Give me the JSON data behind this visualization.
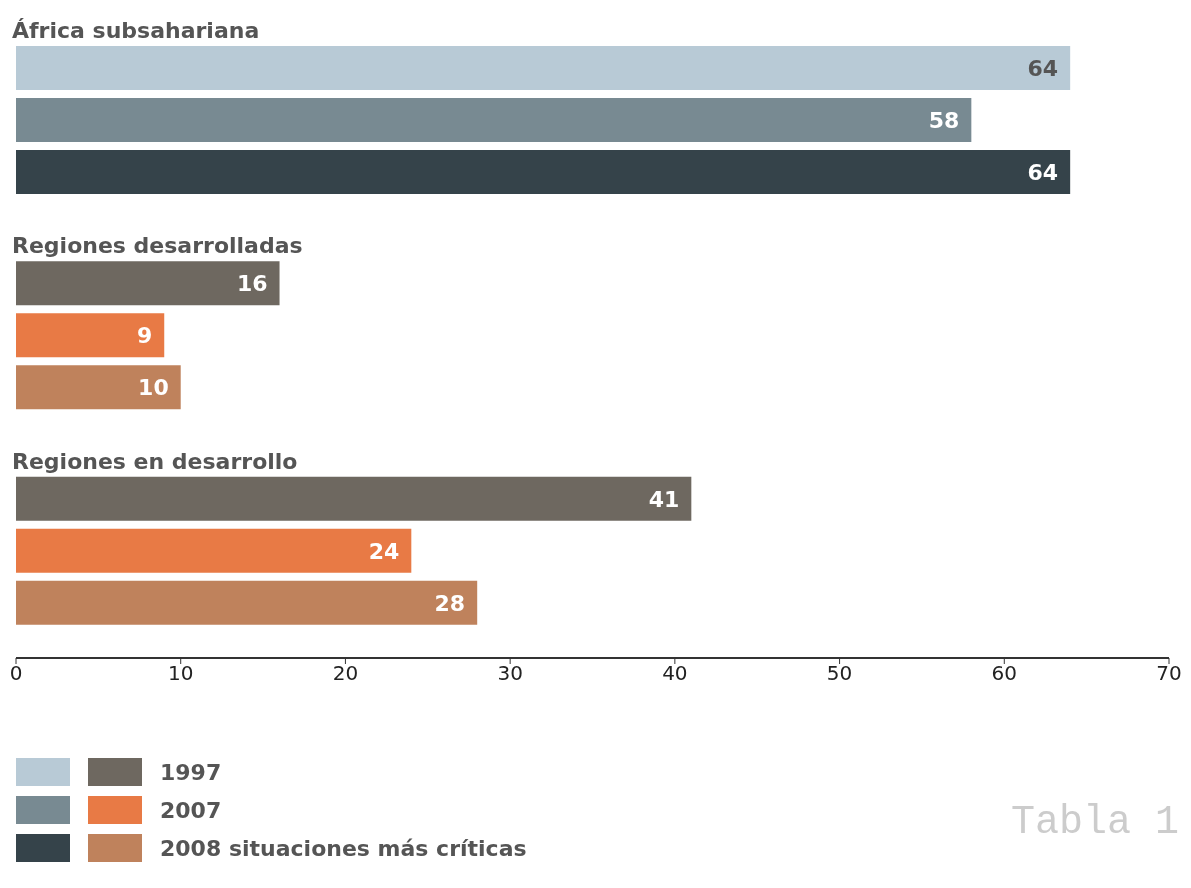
{
  "chart_data": {
    "type": "bar",
    "orientation": "horizontal",
    "categories": [
      "África subsahariana",
      "Regiones desarrolladas",
      "Regiones en desarrollo"
    ],
    "series": [
      {
        "name": "1997",
        "color": "#6e6860",
        "colors": [
          "#b8cad6",
          "#6e6860",
          "#6e6860"
        ],
        "values": [
          64,
          16,
          41
        ]
      },
      {
        "name": "2007",
        "color": "#e87a45",
        "colors": [
          "#788a92",
          "#e87a45",
          "#e87a45"
        ],
        "values": [
          58,
          9,
          24
        ]
      },
      {
        "name": "2008 situaciones más críticas",
        "color": "#bf825c",
        "colors": [
          "#35434a",
          "#bf825c",
          "#bf825c"
        ],
        "values": [
          64,
          10,
          28
        ]
      }
    ],
    "xlim": [
      0,
      70
    ],
    "xticks": [
      0,
      10,
      20,
      30,
      40,
      50,
      60,
      70
    ],
    "data_labels": true,
    "grid": false,
    "legend": "bottom left",
    "annotations": [
      "Tabla 1"
    ]
  }
}
